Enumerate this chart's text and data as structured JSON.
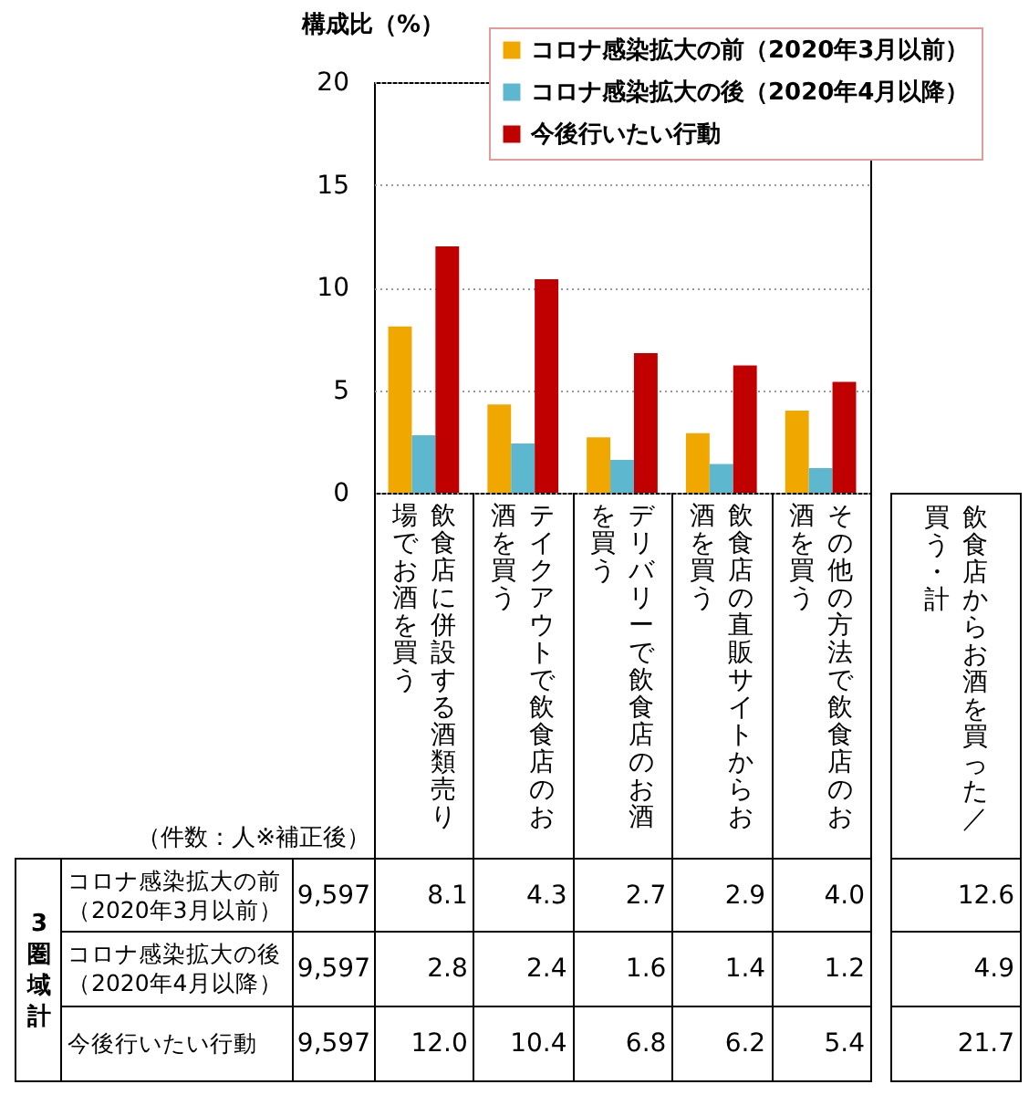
{
  "chart_data": {
    "type": "bar",
    "ylabel": "構成比（%）",
    "categories": [
      "飲食店に併設する酒類売り場でお酒を買う",
      "テイクアウトで飲食店のお酒を買う",
      "デリバリーで飲食店のお酒を買う",
      "飲食店の直販サイトからお酒を買う",
      "その他の方法で飲食店のお酒を買う"
    ],
    "series": [
      {
        "name": "コロナ感染拡大の前（2020年3月以前）",
        "color": "#f0a800",
        "values": [
          8.1,
          4.3,
          2.7,
          2.9,
          4.0
        ],
        "value_labels": [
          "8.1",
          "4.3",
          "2.7",
          "2.9",
          "4.0"
        ]
      },
      {
        "name": "コロナ感染拡大の後（2020年4月以降）",
        "color": "#5cb7cf",
        "values": [
          2.8,
          2.4,
          1.6,
          1.4,
          1.2
        ],
        "value_labels": [
          "2.8",
          "2.4",
          "1.6",
          "1.4",
          "1.2"
        ]
      },
      {
        "name": "今後行いたい行動",
        "color": "#c00000",
        "values": [
          12.0,
          10.4,
          6.8,
          6.2,
          5.4
        ],
        "value_labels": [
          "12.0",
          "10.4",
          "6.8",
          "6.2",
          "5.4"
        ]
      }
    ],
    "ylim": [
      0,
      20
    ],
    "yticks": [
      0,
      5,
      10,
      15,
      20
    ],
    "grid": "y",
    "legend": "top right",
    "annotations": [
      "（件数：人※補正後）",
      "3圏域計",
      "9,597",
      "9,597",
      "9,597",
      "飲食店からお酒を買った／買う・計",
      "12.6",
      "4.9",
      "21.7"
    ]
  }
}
